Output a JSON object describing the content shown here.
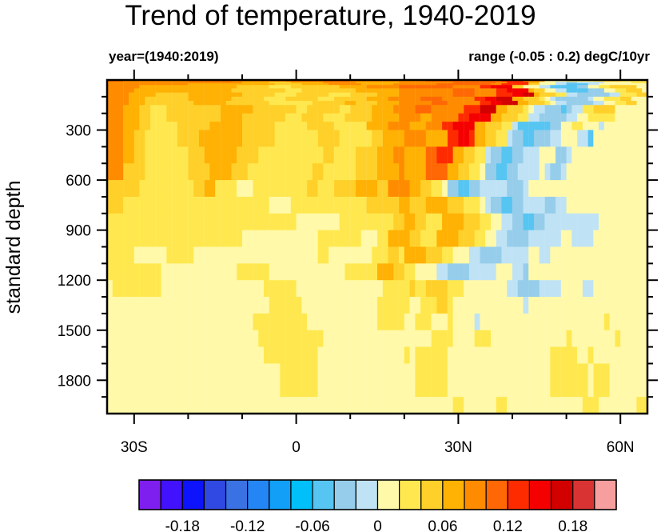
{
  "chart_data": {
    "type": "heatmap",
    "title": "Trend of temperature, 1940-2019",
    "subtitle_left": "year=(1940:2019)",
    "subtitle_right": "range (-0.05 : 0.2) degC/10yr",
    "ylabel": "standard depth",
    "xlabel": "",
    "xlim": [
      -35,
      65
    ],
    "ylim": [
      0,
      2000
    ],
    "y_reversed": true,
    "x_ticks": [
      {
        "value": -30,
        "label": "30S"
      },
      {
        "value": 0,
        "label": "0"
      },
      {
        "value": 30,
        "label": "30N"
      },
      {
        "value": 60,
        "label": "60N"
      }
    ],
    "x_minor_step": 10,
    "y_ticks": [
      {
        "value": 300,
        "label": "300"
      },
      {
        "value": 600,
        "label": "600"
      },
      {
        "value": 900,
        "label": "900"
      },
      {
        "value": 1200,
        "label": "1200"
      },
      {
        "value": 1500,
        "label": "1500"
      },
      {
        "value": 1800,
        "label": "1800"
      }
    ],
    "y_minor_step": 100,
    "colorbar": {
      "range": [
        -0.22,
        0.22
      ],
      "step": 0.02,
      "colors": [
        "#7f1fef",
        "#4112fb",
        "#0d13fb",
        "#3049e3",
        "#3a71e3",
        "#2486f5",
        "#119ff8",
        "#00bff9",
        "#56c5f2",
        "#96cdea",
        "#bfe3f5",
        "#fff9a9",
        "#ffe84f",
        "#ffd02a",
        "#ffb104",
        "#ff8c00",
        "#ff6805",
        "#ff2b00",
        "#f50000",
        "#d30000",
        "#d93333",
        "#f79e9e"
      ],
      "labels": [
        {
          "value": -0.18,
          "label": "-0.18"
        },
        {
          "value": -0.12,
          "label": "-0.12"
        },
        {
          "value": -0.06,
          "label": "-0.06"
        },
        {
          "value": 0,
          "label": "0"
        },
        {
          "value": 0.06,
          "label": "0.06"
        },
        {
          "value": 0.12,
          "label": "0.12"
        },
        {
          "value": 0.18,
          "label": "0.18"
        }
      ]
    },
    "class_colors": {
      "c": "#56c5f2",
      "b": "#96cdea",
      "a": "#bfe3f5",
      "0": "#fff9a9",
      "1": "#ffe84f",
      "2": "#ffd02a",
      "3": "#ffb104",
      "4": "#ff8c00",
      "5": "#ff6805",
      "6": "#ff2b00",
      "7": "#f50000",
      "8": "#d30000"
    },
    "class_values": {
      "c": -0.05,
      "b": -0.03,
      "a": -0.01,
      "0": 0.01,
      "1": 0.03,
      "2": 0.05,
      "3": 0.07,
      "4": 0.09,
      "5": 0.11,
      "6": 0.13,
      "7": 0.15,
      "8": 0.17
    },
    "lat_start": -35,
    "lat_step": 1,
    "depth_levels": [
      0,
      10,
      20,
      30,
      50,
      75,
      100,
      125,
      150,
      200,
      250,
      300,
      400,
      500,
      600,
      700,
      800,
      900,
      1000,
      1100,
      1200,
      1300,
      1400,
      1500,
      1600,
      1700,
      1800,
      1900,
      2000
    ],
    "rows": [
      "5x3,4x12,5x8,4x10,5x12,4x14,5x14,6x4,4x4,0x4,1x5,2x5,1x5",
      "4x16,4x9,3x5,2x4,3x6,4x6,3x8,4x10,5x8,4x2,6x4,3x2,0x3,ax2,bx2,ax5,0x5,1x3",
      "4x15,3x16,2x5,3x5,4x6,3x6,4x8,5x10,4x2,6x5,2x2,0x3,ax2,cx4,ax2,0x7",
      "4x6,3x18,2x6,1x4,2x9,3x5,4x6,5x10,4x5,6x2,7x4,2x2,0x3,ax2,cx5,bx2,0x2,1x2,2x5",
      "4x5,3x18,2x10,1x3,2x10,3x8,4x10,5x4,4x4,6x2,7x4,3x1,2x2,0x2,ax2,cx4,bx3,0x2,1x2,2x3",
      "4x4,3x5,2x6,3x10,2x6,1x4,2x6,1x4,2x5,3x4,4x10,5x4,4x4,6x3,7x2,8x2,3x1,2x3,1x2,ax2,bx6,ax2,1x3,2x2",
      "4x4,3x3,2x8,3x8,2x6,1x4,2x6,1x3,2x6,3x4,4x6,5x4,4x6,6x2,7x2,8x3,3x2,2x3,1x1,0x1,ax1,bx6,ax1,0x2,1x3,2x2",
      "4x4,3x3,2x9,3x6,2x8,1x8,2x6,3x2,2x4,3x4,4x6,5x3,4x6,6x2,7x2,8x3,3x2,2x3,1x1,0x1,ax2,bx5,ax2,0x2,1x2,2x2",
      "4x3,3x3,2x2,1x3,2x10,3x6,2x8,1x2,2x6,1x2,2x4,3x4,4x4,5x3,4x6,6x3,8x3,3x2,2x3,1x1,0x1,ax2,bx3,cx1,bx1,ax2,1x2,2x4",
      "4x3,3x3,2x2,1x3,2x10,3x4,2x8,1x3,2x4,1x4,2x5,3x5,4x4,3x2,4x5,6x2,7x4,3x2,2x3,1x2,ax2,bx5,ax2,0x2,1x5",
      "4x3,3x3,2x2,1x5,2x6,3x6,2x6,1x6,2x5,1x6,3x4,4x4,3x3,4x3,6x2,7x4,3x2,2x3,1x2,ax1,cx6,bx2,0x2,1x2,0x3,ax1",
      "4x3,3x2,2x2,1x6,2x4,3x8,2x6,1x8,2x4,1x6,2x2,3x4,4x4,3x4,6x2,7x2,6x1,3x2,2x2,1x2,ax1,bx2,cx2,bx3,ax2,0x3,ax2,cx1",
      "4x3,3x2,2x2,1x8,2x3,3x6,2x4,1x12,2x2,1x4,2x4,3x3,4x2,3x4,5x2,6x3,3x2,2x2,1x2,ax1,bx2,cx2,bx2,ax3,0x3,bx2,ax1",
      "4x3,2x4,1x8,2x4,3x4,2x3,1x12,2x2,1x6,2x4,3x4,4x1,3x4,5x4,3x2,2x2,1x2,0x1,bx2,cx2,bx2,ax4,0x1,ax1,bx2,ax1",
      "2x6,1x10,2x2,3x2,1x4,0x3,1x10,2x2,1x3,2x4,3x4,2x2,4x4,3x2,2x2,1x2,0x1,bx2,cx2,bx2,ax5,bx3,ax1",
      "2x3,1x27,0x4,1x14,2x6,3x2,2x3,3x4,2x3,1x3,0x1,ax1,bx2,cx2,bx2,ax4,bx2,ax2",
      "1x35,0x8,1x10,2x2,3x2,2x2,1x3,3x4,2x3,1x2,0x2,ax2,bx2,cx2,bx2,ax10",
      "1x25,0x14,1x8,0x3,1x2,3x4,2x2,1x3,3x4,2x3,1x2,0x2,ax2,bx4,ax6,0x2,ax4",
      "1x5,0x6,1x5,0x23,1x2,0x8,1x3,2x2,1x1,3x4,2x3,1x2,0x3,ax2,bx4,ax5,0x2,ax2",
      "1x10,0x14,1x6,0x14,1x6,3x3,2x2,1x2,0x4,ax2,bx4,ax5,0x3,ax2,bx1",
      "0x1,1x9,0x19,1x6,0x16,1x5,2x1,1x2,2x4,1x3,0x8,ax2,bx4,ax4,0x4,ax2",
      "0x30,1x6,0x14,1x6,0x2,1x3,2x2,1x1,0x13,ax1,0x14",
      "0x27,1x10,0x13,1x5,0x2,1x3,0x3,1x1,0x4,ax1,0x23,1x1,0x7",
      "0x28,1x12,0x20,1x4,0x4,1x3,0x14,1x1,0x8,1x1,0x5",
      "0x29,1x10,0x16,1x1,0x1,1x6,0x19,1x5,0x2,1x1,0x10",
      "0x32,1x7,0x18,1x6,0x19,1x7,0x1,1x3,0x7",
      "0x32,1x7,0x18,1x6,0x19,1x7,0x1,1x3,0x7",
      "0x64,1x2,0x6,1x2,0x14,1x3,0x7,1x2"
    ]
  }
}
